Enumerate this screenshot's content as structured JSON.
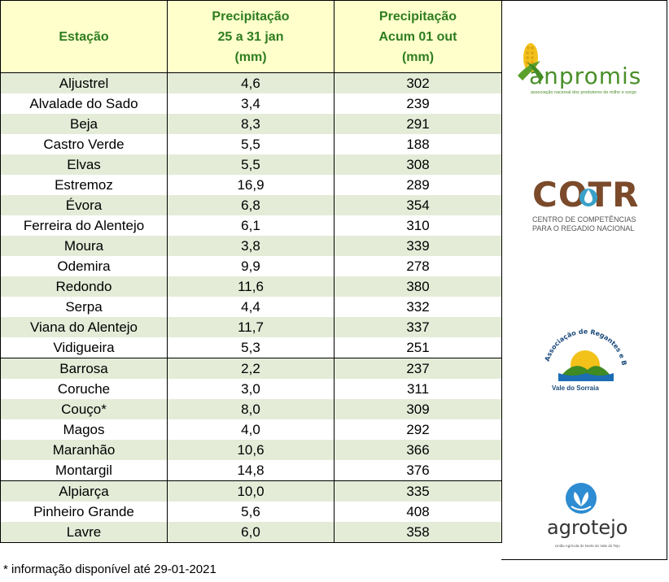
{
  "header": {
    "col1": "Estação",
    "col2_line1": "Precipitação",
    "col2_line2": "25 a 31 jan",
    "col2_line3": "(mm)",
    "col3_line1": "Precipitação",
    "col3_line2": "Acum 01 out",
    "col3_line3": "(mm)"
  },
  "rows": [
    {
      "station": "Aljustrel",
      "week": "4,6",
      "accum": "302"
    },
    {
      "station": "Alvalade do Sado",
      "week": "3,4",
      "accum": "239"
    },
    {
      "station": "Beja",
      "week": "8,3",
      "accum": "291"
    },
    {
      "station": "Castro Verde",
      "week": "5,5",
      "accum": "188"
    },
    {
      "station": "Elvas",
      "week": "5,5",
      "accum": "308"
    },
    {
      "station": "Estremoz",
      "week": "16,9",
      "accum": "289"
    },
    {
      "station": "Évora",
      "week": "6,8",
      "accum": "354"
    },
    {
      "station": "Ferreira do Alentejo",
      "week": "6,1",
      "accum": "310"
    },
    {
      "station": "Moura",
      "week": "3,8",
      "accum": "339"
    },
    {
      "station": "Odemira",
      "week": "9,9",
      "accum": "278"
    },
    {
      "station": "Redondo",
      "week": "11,6",
      "accum": "380"
    },
    {
      "station": "Serpa",
      "week": "4,4",
      "accum": "332"
    },
    {
      "station": "Viana do Alentejo",
      "week": "11,7",
      "accum": "337"
    },
    {
      "station": "Vidigueira",
      "week": "5,3",
      "accum": "251"
    },
    {
      "station": "Barrosa",
      "week": "2,2",
      "accum": "237"
    },
    {
      "station": "Coruche",
      "week": "3,0",
      "accum": "311"
    },
    {
      "station": "Couço*",
      "week": "8,0",
      "accum": "309"
    },
    {
      "station": "Magos",
      "week": "4,0",
      "accum": "292"
    },
    {
      "station": "Maranhão",
      "week": "10,6",
      "accum": "366"
    },
    {
      "station": "Montargil",
      "week": "14,8",
      "accum": "376"
    },
    {
      "station": "Alpiarça",
      "week": "10,0",
      "accum": "335"
    },
    {
      "station": "Pinheiro Grande",
      "week": "5,6",
      "accum": "408"
    },
    {
      "station": "Lavre",
      "week": "6,0",
      "accum": "358"
    }
  ],
  "logos": {
    "anpromis": {
      "name": "anpromis",
      "tagline": "associação nacional dos produtores de milho e sorgo"
    },
    "cotr": {
      "name": "COTR",
      "line1": "CENTRO DE COMPETÊNCIAS",
      "line2": "PARA O REGADIO NACIONAL"
    },
    "sorraia": {
      "arc_text": "Associação de Regantes e Beneficiários do",
      "name": "Vale do Sorraia"
    },
    "agrotejo": {
      "name": "agrotejo",
      "tagline": "União Agrícola do Norte do Vale do Tejo"
    }
  },
  "footnote": "* informação disponível até 29-01-2021",
  "colors": {
    "header_bg": "#ffffcc",
    "header_text": "#2e7d1f",
    "row_shade": "#e4ecd8"
  }
}
